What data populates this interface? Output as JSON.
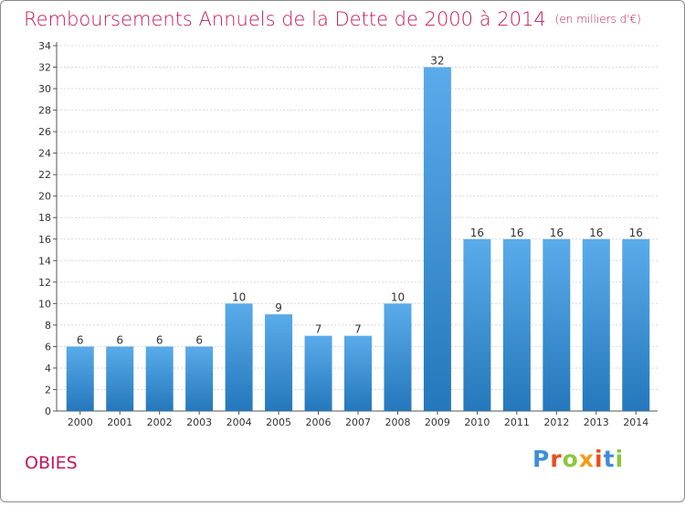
{
  "title": "Remboursements Annuels de la Dette de 2000 à 2014",
  "unit": "(en milliers d'€)",
  "place": "OBIES",
  "logo": {
    "text": "Proxiti",
    "colors": [
      "#3f8fd8",
      "#e84e1b",
      "#8dc63f",
      "#f39c12",
      "#e84e1b",
      "#3f8fd8",
      "#8dc63f"
    ]
  },
  "colors": {
    "bar_top": "#5aabea",
    "bar_bottom": "#2478bb",
    "title": "#c2185b",
    "grid": "#d9d9d9"
  },
  "chart_data": {
    "type": "bar",
    "title": "Remboursements Annuels de la Dette de 2000 à 2014",
    "categories": [
      "2000",
      "2001",
      "2002",
      "2003",
      "2004",
      "2005",
      "2006",
      "2007",
      "2008",
      "2009",
      "2010",
      "2011",
      "2012",
      "2013",
      "2014"
    ],
    "values": [
      6,
      6,
      6,
      6,
      10,
      9,
      7,
      7,
      10,
      32,
      16,
      16,
      16,
      16,
      16
    ],
    "ylim": [
      0,
      34
    ],
    "yticks": [
      0,
      2,
      4,
      6,
      8,
      10,
      12,
      14,
      16,
      18,
      20,
      22,
      24,
      26,
      28,
      30,
      32,
      34
    ],
    "grid": true,
    "data_labels": true
  }
}
